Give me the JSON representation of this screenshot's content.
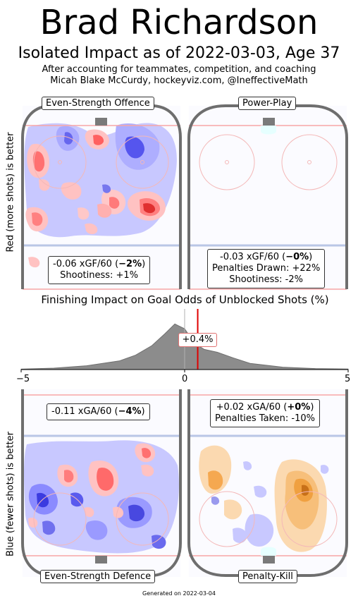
{
  "header": {
    "title": "Brad Richardson",
    "subtitle": "Isolated Impact as of 2022-03-03, Age 37",
    "byline1": "After accounting for teammates, competition, and coaching",
    "byline2": "Micah Blake McCurdy, hockeyviz.com, @IneffectiveMath"
  },
  "axis_labels": {
    "top": "Red (more shots) is better",
    "bottom": "Blue (fewer shots) is better"
  },
  "panels": {
    "es_offence": {
      "label": "Even-Strength Offence",
      "line1_pre": "-0.06 xGF/60 (",
      "line1_bold": "−2%",
      "line1_post": ")",
      "line2": "Shootiness: +1%"
    },
    "power_play": {
      "label": "Power-Play",
      "line1_pre": "-0.03 xGF/60 (",
      "line1_bold": "−0%",
      "line1_post": ")",
      "line2": "Penalties Drawn: +22%",
      "line3": "Shootiness: -2%"
    },
    "es_defence": {
      "label": "Even-Strength Defence",
      "line1_pre": "-0.11 xGA/60 (",
      "line1_bold": "−4%",
      "line1_post": ")"
    },
    "penalty_kill": {
      "label": "Penalty-Kill",
      "line1_pre": "+0.02 xGA/60 (",
      "line1_bold": "+0%",
      "line1_post": ")",
      "line2": "Penalties Taken: -10%"
    }
  },
  "finishing": {
    "title": "Finishing Impact on Goal Odds of Unblocked Shots (%)",
    "ticks": [
      "−5",
      "0",
      "5"
    ],
    "marker_label": "+0.4%"
  },
  "footer": "Generated on 2022-03-04",
  "chart_data": {
    "type": "area",
    "title": "Finishing Impact on Goal Odds of Unblocked Shots (%)",
    "xlim": [
      -5,
      5
    ],
    "x": [
      -5,
      -4,
      -3,
      -2,
      -1.5,
      -1,
      -0.6,
      -0.3,
      0,
      0.3,
      0.6,
      1,
      1.5,
      2,
      3,
      4,
      5
    ],
    "density": [
      0.01,
      0.03,
      0.08,
      0.18,
      0.3,
      0.5,
      0.75,
      0.95,
      0.85,
      0.55,
      0.42,
      0.36,
      0.24,
      0.13,
      0.05,
      0.02,
      0.01
    ],
    "player_value": 0.4,
    "colors": {
      "distribution": "#8c8c8c",
      "marker": "#e00000",
      "more_shots": "#ff4d4d",
      "fewer_shots": "#4d4dff",
      "pk": "#f5a040"
    }
  }
}
